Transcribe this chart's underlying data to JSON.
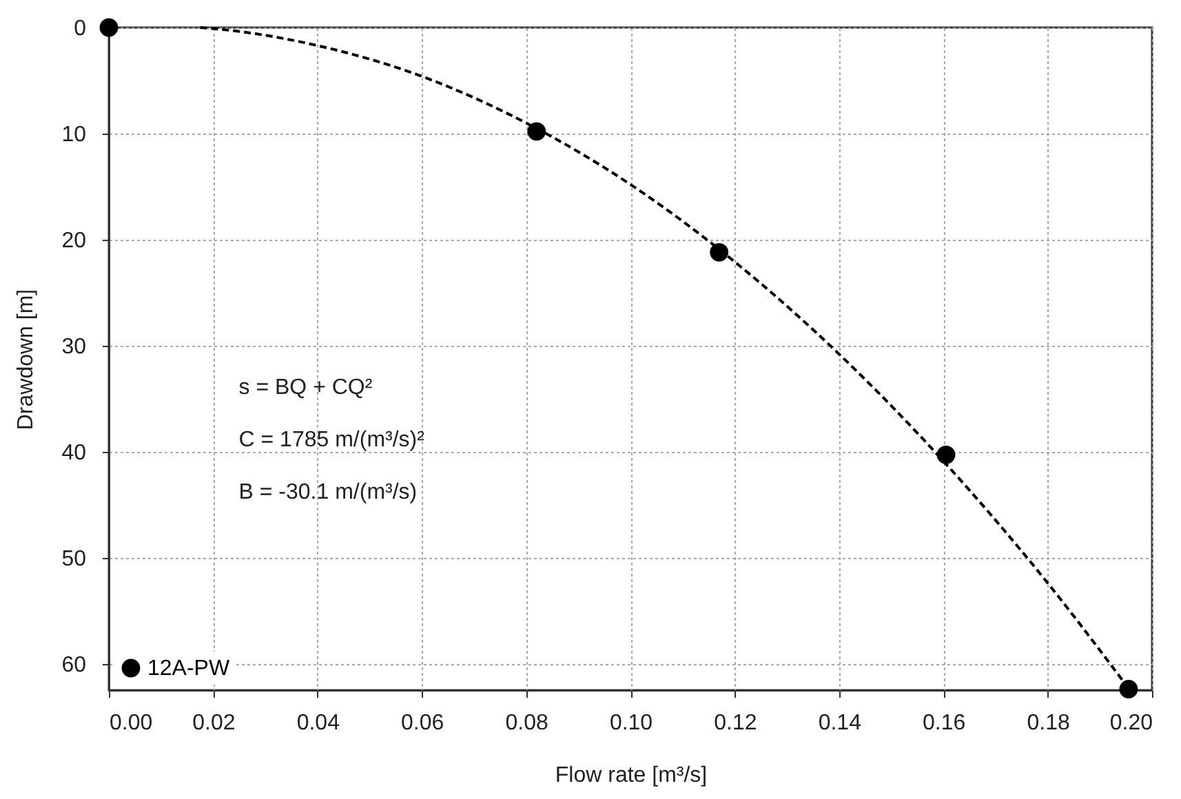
{
  "chart_data": {
    "type": "scatter",
    "xlabel": "Flow rate [m³/s]",
    "ylabel": "Drawdown [m]",
    "annotations": [
      "s = BQ + CQ²",
      "C = 1785 m/(m³/s)²",
      "B = -30.1 m/(m³/s)"
    ],
    "series": [
      {
        "name": "12A-PW",
        "color": "#000000",
        "marker": "circle",
        "x": [
          0.0,
          0.082,
          0.117,
          0.1605,
          0.1955
        ],
        "values": [
          0.0,
          9.8,
          21.2,
          40.3,
          62.4
        ]
      },
      {
        "type": "line",
        "color": "#000000",
        "line_style": "dashed",
        "marker": "none",
        "x": [
          0.0175,
          0.02,
          0.04,
          0.06,
          0.08,
          0.1,
          0.12,
          0.14,
          0.16,
          0.18,
          0.195
        ],
        "values": [
          0.0,
          0.1,
          1.7,
          4.6,
          9.0,
          14.8,
          22.1,
          30.8,
          40.9,
          52.4,
          62.0
        ]
      }
    ],
    "xlim": [
      0.0,
      0.2
    ],
    "xticks": [
      {
        "value": 0.0,
        "label": "0.00"
      },
      {
        "value": 0.02,
        "label": "0.02"
      },
      {
        "value": 0.04,
        "label": "0.04"
      },
      {
        "value": 0.06,
        "label": "0.06"
      },
      {
        "value": 0.08,
        "label": "0.08"
      },
      {
        "value": 0.1,
        "label": "0.10"
      },
      {
        "value": 0.12,
        "label": "0.12"
      },
      {
        "value": 0.14,
        "label": "0.14"
      },
      {
        "value": 0.16,
        "label": "0.16"
      },
      {
        "value": 0.18,
        "label": "0.18"
      },
      {
        "value": 0.2,
        "label": "0.20"
      }
    ],
    "ylim": [
      62.5,
      0
    ],
    "yticks": [
      0,
      10,
      20,
      30,
      40,
      50,
      60
    ],
    "grid": true,
    "legend": "bottom left"
  }
}
